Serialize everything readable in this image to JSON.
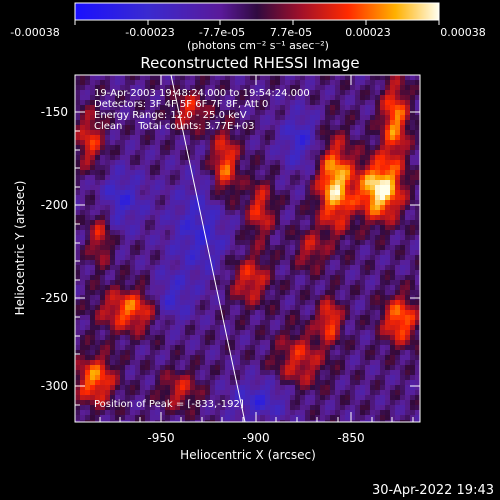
{
  "colorbar": {
    "ticks": [
      "-0.00038",
      "-0.00023",
      "-7.7e-05",
      "7.7e-05",
      "0.00023",
      "0.00038"
    ],
    "unit_label": "(photons cm⁻² s⁻¹ asec⁻²)"
  },
  "plot": {
    "title": "Reconstructed RHESSI Image",
    "xlabel": "Heliocentric X (arcsec)",
    "ylabel": "Heliocentric Y (arcsec)",
    "xticks": [
      "-950",
      "-900",
      "-850"
    ],
    "yticks": [
      "-150",
      "-200",
      "-250",
      "-300"
    ],
    "info_lines": [
      "19-Apr-2003 19:48:24.000 to 19:54:24.000",
      "Detectors: 3F 4F 5F 6F 7F 8F, Att 0",
      "Energy Range: 12.0 - 25.0 keV",
      "Clean     Total counts: 3.77E+03"
    ],
    "peak_text": "Position of Peak = [-833,-192]"
  },
  "footer": {
    "timestamp": "30-Apr-2022 19:43"
  },
  "chart_data": {
    "type": "heatmap",
    "title": "Reconstructed RHESSI Image",
    "xlabel": "Heliocentric X (arcsec)",
    "ylabel": "Heliocentric Y (arcsec)",
    "xlim": [
      -995,
      -812
    ],
    "ylim": [
      -323,
      -127
    ],
    "colorbar_range": [
      -0.00038,
      0.00038
    ],
    "peak": [
      -833,
      -192
    ],
    "limb_line": [
      [
        -960,
        -127
      ],
      [
        -896,
        -323
      ]
    ]
  }
}
